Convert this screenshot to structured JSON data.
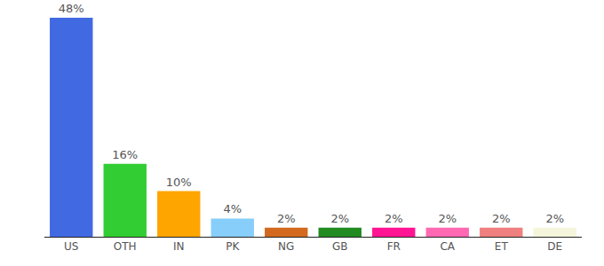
{
  "chart_data": {
    "type": "bar",
    "categories": [
      "US",
      "OTH",
      "IN",
      "PK",
      "NG",
      "GB",
      "FR",
      "CA",
      "ET",
      "DE"
    ],
    "values": [
      48,
      16,
      10,
      4,
      2,
      2,
      2,
      2,
      2,
      2
    ],
    "value_labels": [
      "48%",
      "16%",
      "10%",
      "4%",
      "2%",
      "2%",
      "2%",
      "2%",
      "2%",
      "2%"
    ],
    "colors": [
      "#4169e1",
      "#32cd32",
      "#ffa500",
      "#87cefa",
      "#d2691e",
      "#228b22",
      "#ff1493",
      "#ff69b4",
      "#f08080",
      "#f5f5dc"
    ],
    "ylim": [
      0,
      48
    ],
    "data_labels": true,
    "grid": false,
    "tick_labels": "x"
  }
}
